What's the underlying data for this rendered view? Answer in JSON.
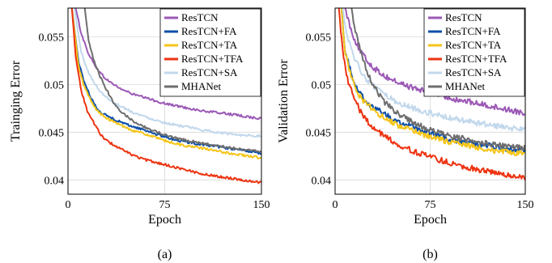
{
  "chart_data": [
    {
      "type": "line",
      "caption": "(a)",
      "xlabel": "Epoch",
      "ylabel": "Trainging Error",
      "xlim": [
        0,
        150
      ],
      "ylim": [
        0.0385,
        0.058
      ],
      "xticks": [
        0,
        75,
        150
      ],
      "xtick_labels": [
        "0",
        "75",
        "150"
      ],
      "yticks": [
        0.04,
        0.045,
        0.05,
        0.055
      ],
      "ytick_labels": [
        "0.04",
        "0.045",
        "0.05",
        "0.055"
      ],
      "grid": true,
      "legend_position": "top-right",
      "series": [
        {
          "name": "ResTCN",
          "color": "#9b59b6",
          "x": [
            6,
            10,
            15,
            20,
            25,
            30,
            40,
            50,
            60,
            75,
            90,
            105,
            120,
            135,
            150
          ],
          "y": [
            0.058,
            0.0555,
            0.0535,
            0.0522,
            0.0512,
            0.0505,
            0.0496,
            0.049,
            0.0486,
            0.048,
            0.0476,
            0.0472,
            0.047,
            0.0467,
            0.0464
          ]
        },
        {
          "name": "ResTCN+FA",
          "color": "#0d4fa8",
          "x": [
            3,
            8,
            12,
            18,
            22,
            26,
            32,
            40,
            50,
            60,
            75,
            90,
            105,
            120,
            135,
            150
          ],
          "y": [
            0.058,
            0.0525,
            0.0505,
            0.0485,
            0.0476,
            0.047,
            0.0466,
            0.0461,
            0.0456,
            0.0452,
            0.0445,
            0.044,
            0.0437,
            0.0434,
            0.0431,
            0.0428
          ]
        },
        {
          "name": "ResTCN+TA",
          "color": "#f5c518",
          "x": [
            3,
            8,
            12,
            18,
            22,
            26,
            32,
            40,
            50,
            60,
            75,
            90,
            105,
            120,
            135,
            150
          ],
          "y": [
            0.058,
            0.052,
            0.05,
            0.0482,
            0.0474,
            0.0468,
            0.0463,
            0.0458,
            0.0452,
            0.0448,
            0.0441,
            0.0436,
            0.0433,
            0.0429,
            0.0426,
            0.0423
          ]
        },
        {
          "name": "ResTCN+TFA",
          "color": "#ee3311",
          "x": [
            3,
            6,
            10,
            15,
            20,
            25,
            30,
            40,
            50,
            60,
            75,
            90,
            105,
            120,
            135,
            150
          ],
          "y": [
            0.058,
            0.053,
            0.0495,
            0.0472,
            0.046,
            0.0448,
            0.0441,
            0.0433,
            0.0426,
            0.0421,
            0.0416,
            0.0411,
            0.0406,
            0.0403,
            0.04,
            0.0397
          ]
        },
        {
          "name": "ResTCN+SA",
          "color": "#c2d8ec",
          "x": [
            5,
            10,
            15,
            20,
            25,
            30,
            40,
            50,
            60,
            75,
            90,
            105,
            120,
            135,
            150
          ],
          "y": [
            0.058,
            0.0535,
            0.0515,
            0.0502,
            0.0493,
            0.0486,
            0.0478,
            0.0471,
            0.0466,
            0.046,
            0.0456,
            0.0452,
            0.0449,
            0.0447,
            0.0446
          ]
        },
        {
          "name": "MHANet",
          "color": "#6e6e6e",
          "x": [
            13,
            16,
            20,
            25,
            30,
            35,
            40,
            50,
            60,
            75,
            90,
            105,
            120,
            135,
            150
          ],
          "y": [
            0.058,
            0.0545,
            0.0525,
            0.0508,
            0.0494,
            0.0482,
            0.0473,
            0.0462,
            0.0455,
            0.0447,
            0.0442,
            0.0438,
            0.0435,
            0.0432,
            0.043
          ]
        }
      ]
    },
    {
      "type": "line",
      "caption": "(b)",
      "xlabel": "Epoch",
      "ylabel": "Validation Error",
      "xlim": [
        0,
        150
      ],
      "ylim": [
        0.0385,
        0.058
      ],
      "xticks": [
        0,
        75,
        150
      ],
      "xtick_labels": [
        "0",
        "75",
        "150"
      ],
      "yticks": [
        0.04,
        0.045,
        0.05,
        0.055
      ],
      "ytick_labels": [
        "0.04",
        "0.045",
        "0.05",
        "0.055"
      ],
      "grid": true,
      "legend_position": "top-right",
      "series": [
        {
          "name": "ResTCN",
          "color": "#9b59b6",
          "x": [
            8,
            12,
            16,
            20,
            25,
            30,
            40,
            50,
            60,
            75,
            90,
            105,
            120,
            135,
            150
          ],
          "y": [
            0.058,
            0.056,
            0.0545,
            0.0535,
            0.0525,
            0.0518,
            0.0508,
            0.0502,
            0.0497,
            0.0491,
            0.0486,
            0.0482,
            0.0478,
            0.0474,
            0.047
          ]
        },
        {
          "name": "ResTCN+FA",
          "color": "#0d4fa8",
          "x": [
            5,
            8,
            12,
            16,
            20,
            25,
            30,
            40,
            50,
            60,
            75,
            90,
            105,
            120,
            135,
            150
          ],
          "y": [
            0.058,
            0.0535,
            0.0515,
            0.05,
            0.049,
            0.0482,
            0.0476,
            0.0468,
            0.0461,
            0.0456,
            0.0449,
            0.0443,
            0.0439,
            0.0436,
            0.0433,
            0.0431
          ]
        },
        {
          "name": "ResTCN+TA",
          "color": "#f5c518",
          "x": [
            5,
            8,
            12,
            16,
            20,
            25,
            30,
            40,
            50,
            60,
            75,
            90,
            105,
            120,
            135,
            150
          ],
          "y": [
            0.058,
            0.0532,
            0.0512,
            0.0497,
            0.0487,
            0.0479,
            0.0473,
            0.0464,
            0.0457,
            0.0452,
            0.0445,
            0.044,
            0.0436,
            0.0432,
            0.0429,
            0.0427
          ]
        },
        {
          "name": "ResTCN+TFA",
          "color": "#ee3311",
          "x": [
            3,
            6,
            10,
            15,
            20,
            25,
            30,
            40,
            50,
            60,
            75,
            90,
            105,
            120,
            135,
            150
          ],
          "y": [
            0.058,
            0.0535,
            0.0505,
            0.0485,
            0.0472,
            0.0462,
            0.0455,
            0.0445,
            0.0437,
            0.0431,
            0.0424,
            0.0418,
            0.0413,
            0.0409,
            0.0405,
            0.0402
          ]
        },
        {
          "name": "ResTCN+SA",
          "color": "#c2d8ec",
          "x": [
            6,
            10,
            15,
            20,
            25,
            30,
            40,
            50,
            60,
            75,
            90,
            105,
            120,
            135,
            150
          ],
          "y": [
            0.058,
            0.0548,
            0.0528,
            0.0515,
            0.0505,
            0.0498,
            0.0488,
            0.0481,
            0.0476,
            0.047,
            0.0465,
            0.0461,
            0.0458,
            0.0455,
            0.0453
          ]
        },
        {
          "name": "MHANet",
          "color": "#6e6e6e",
          "x": [
            13,
            16,
            20,
            25,
            30,
            35,
            40,
            50,
            60,
            75,
            90,
            105,
            120,
            135,
            150
          ],
          "y": [
            0.058,
            0.0555,
            0.0535,
            0.0515,
            0.05,
            0.0489,
            0.048,
            0.0469,
            0.0461,
            0.0452,
            0.0446,
            0.0442,
            0.0438,
            0.0436,
            0.0434
          ]
        }
      ]
    }
  ]
}
